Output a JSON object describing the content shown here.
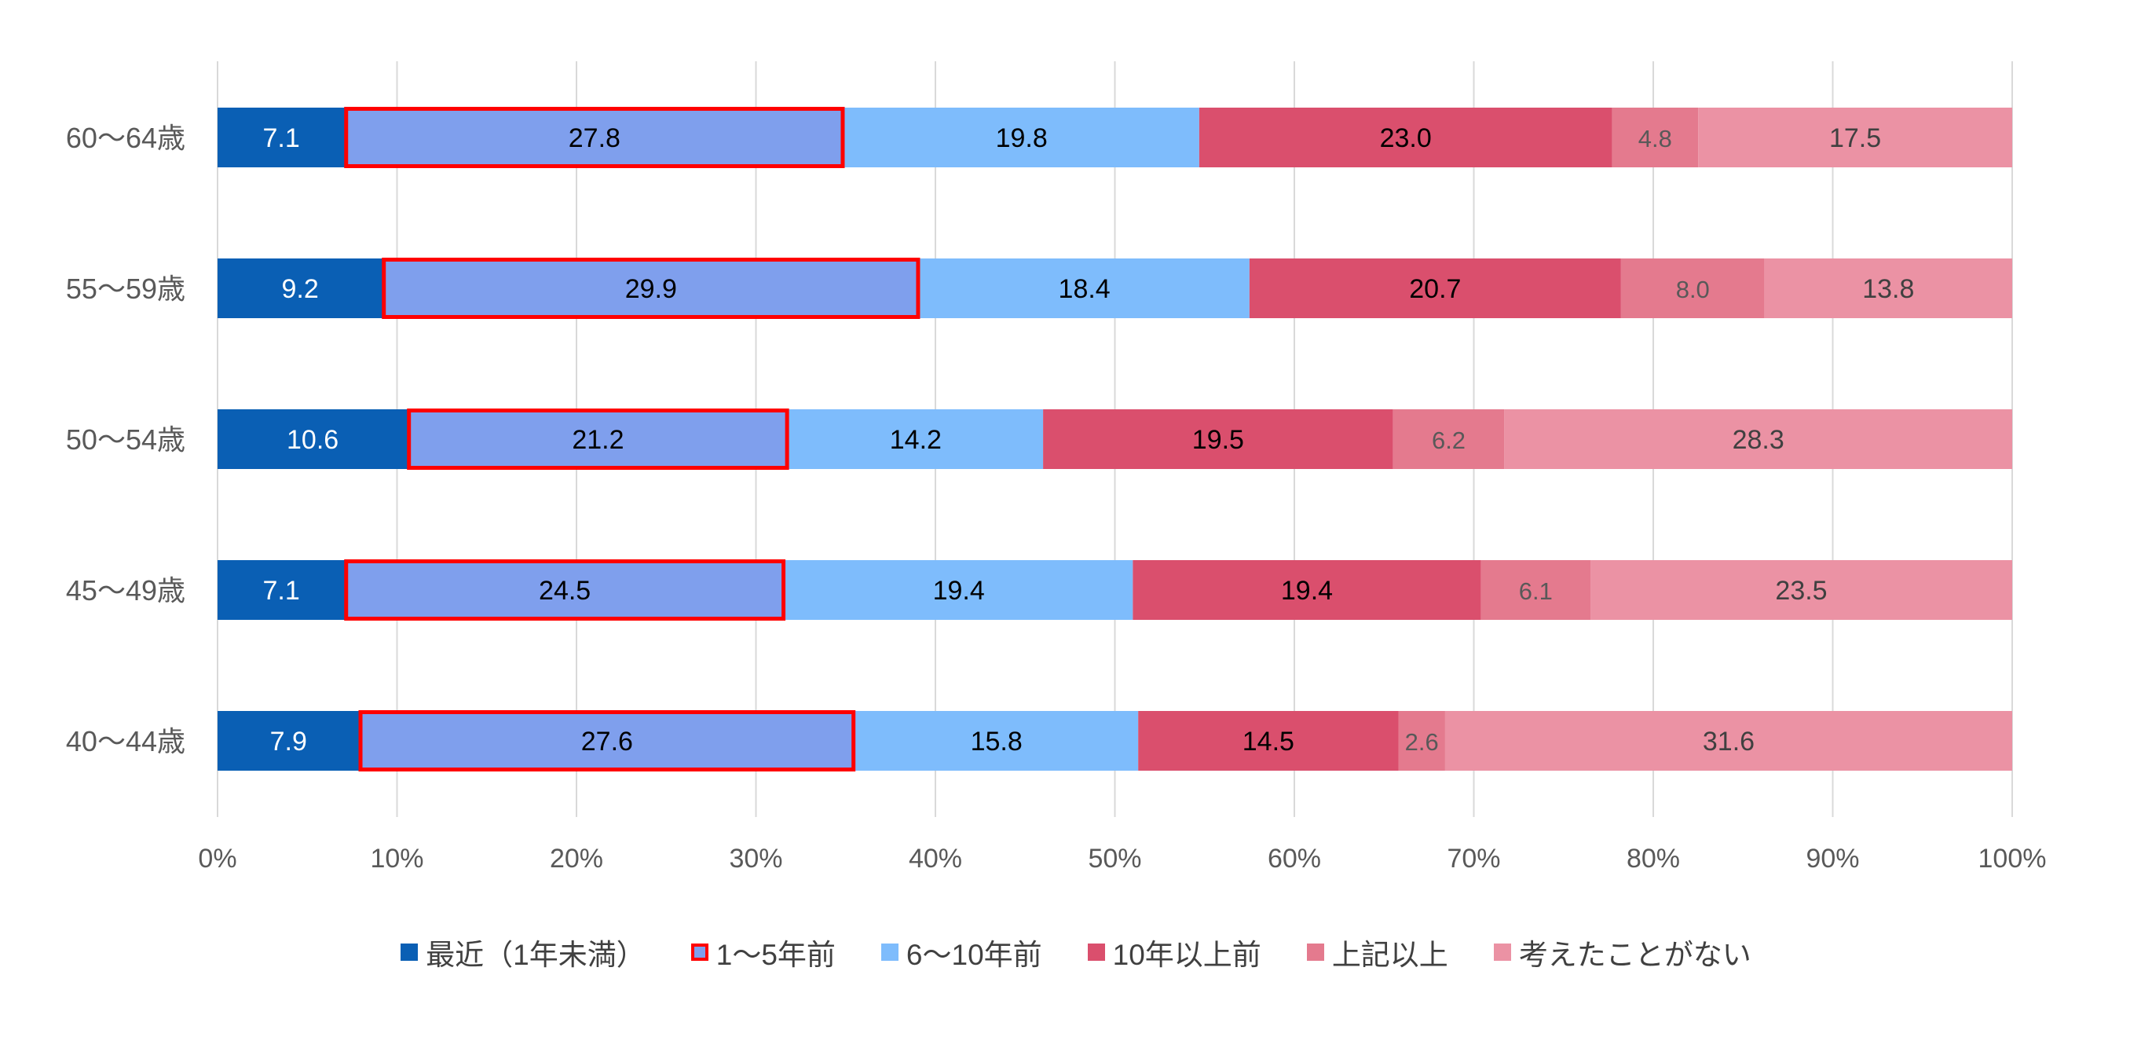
{
  "chart_data": {
    "type": "bar",
    "orientation": "horizontal",
    "stacked": "100%",
    "categories": [
      "60〜64歳",
      "55〜59歳",
      "50〜54歳",
      "45〜49歳",
      "40〜44歳"
    ],
    "series": [
      {
        "name": "最近（1年未満）",
        "color": "#0a5fb4",
        "label_color": "#ffffff",
        "values": [
          7.1,
          9.2,
          10.6,
          7.1,
          7.9
        ]
      },
      {
        "name": "1〜5年前",
        "color": "#7f9fed",
        "label_color": "#000000",
        "highlighted": true,
        "values": [
          27.8,
          29.9,
          21.2,
          24.5,
          27.6
        ]
      },
      {
        "name": "6〜10年前",
        "color": "#7ebcfc",
        "label_color": "#000000",
        "values": [
          19.8,
          18.4,
          14.2,
          19.4,
          15.8
        ]
      },
      {
        "name": "10年以上前",
        "color": "#da4f6d",
        "label_color": "#000000",
        "values": [
          23.0,
          20.7,
          19.5,
          19.4,
          14.5
        ]
      },
      {
        "name": "上記以上",
        "color": "#e47a8e",
        "label_color": "#595959",
        "values": [
          4.8,
          8.0,
          6.2,
          6.1,
          2.6
        ]
      },
      {
        "name": "考えたことがない",
        "color": "#eb92a4",
        "label_color": "#404040",
        "values": [
          17.5,
          13.8,
          28.3,
          23.5,
          31.6
        ]
      }
    ],
    "x_ticks": [
      "0%",
      "10%",
      "20%",
      "30%",
      "40%",
      "50%",
      "60%",
      "70%",
      "80%",
      "90%",
      "100%"
    ],
    "xlim": [
      0,
      100
    ],
    "grid": true,
    "highlight_color": "#ff0000",
    "legend_position": "bottom",
    "title": "",
    "xlabel": "",
    "ylabel": ""
  }
}
